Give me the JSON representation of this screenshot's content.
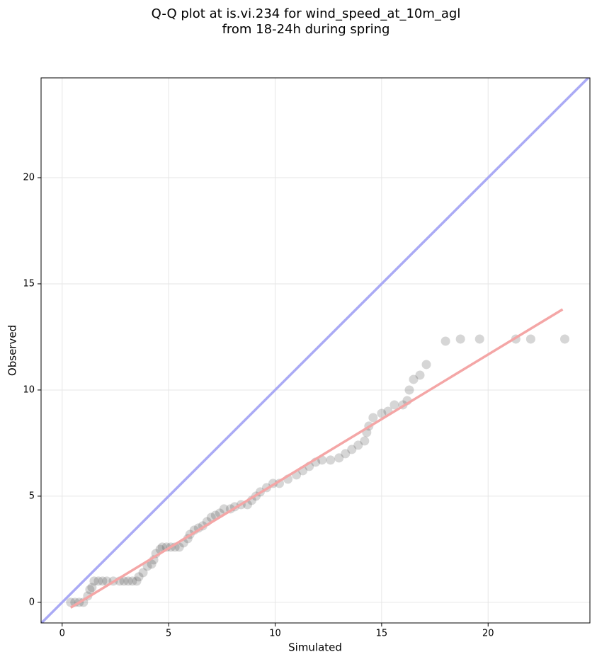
{
  "chart_data": {
    "type": "scatter",
    "title": "Q-Q plot at is.vi.234 for wind_speed_at_10m_agl",
    "subtitle": "from 18-24h during spring",
    "x_label": "Simulated",
    "y_label": "Observed",
    "xlim": [
      -0.99,
      24.78
    ],
    "ylim": [
      -0.97,
      24.7
    ],
    "xticks": [
      0,
      5,
      10,
      15,
      20
    ],
    "yticks": [
      0,
      5,
      10,
      15,
      20
    ],
    "grid": true,
    "series": [
      {
        "kind": "points",
        "color": "#333333",
        "x": [
          0.4,
          0.6,
          0.8,
          1.0,
          1.2,
          1.3,
          1.4,
          1.5,
          1.7,
          1.9,
          2.1,
          2.4,
          2.7,
          2.9,
          3.1,
          3.3,
          3.5,
          3.6,
          3.8,
          4.0,
          4.2,
          4.3,
          4.4,
          4.6,
          4.7,
          4.9,
          5.1,
          5.3,
          5.5,
          5.7,
          5.9,
          6.0,
          6.2,
          6.4,
          6.6,
          6.8,
          7.0,
          7.2,
          7.4,
          7.6,
          7.9,
          8.1,
          8.4,
          8.7,
          8.9,
          9.1,
          9.3,
          9.6,
          9.9,
          10.2,
          10.6,
          11.0,
          11.3,
          11.6,
          11.9,
          12.2,
          12.6,
          13.0,
          13.3,
          13.6,
          13.9,
          14.2,
          14.3,
          14.4,
          14.6,
          15.0,
          15.3,
          15.6,
          16.0,
          16.2,
          16.3,
          16.5,
          16.8,
          17.1,
          18.0,
          18.7,
          19.6,
          21.3,
          22.0,
          23.6
        ],
        "values": [
          0,
          0,
          0,
          0,
          0.3,
          0.6,
          0.7,
          1.0,
          1.0,
          1.0,
          1.0,
          1.0,
          1.0,
          1.0,
          1.0,
          1.0,
          1.0,
          1.2,
          1.4,
          1.7,
          1.8,
          2.0,
          2.3,
          2.5,
          2.6,
          2.6,
          2.6,
          2.6,
          2.6,
          2.8,
          3.0,
          3.2,
          3.4,
          3.5,
          3.6,
          3.8,
          4.0,
          4.1,
          4.2,
          4.4,
          4.4,
          4.5,
          4.6,
          4.6,
          4.8,
          5.0,
          5.2,
          5.4,
          5.6,
          5.6,
          5.8,
          6.0,
          6.2,
          6.4,
          6.6,
          6.7,
          6.7,
          6.8,
          7.0,
          7.2,
          7.4,
          7.6,
          8.0,
          8.3,
          8.7,
          8.9,
          9.0,
          9.3,
          9.3,
          9.5,
          10.0,
          10.5,
          10.7,
          11.2,
          12.3,
          12.4,
          12.4,
          12.4,
          12.4,
          12.4
        ]
      },
      {
        "kind": "line",
        "color": "#aaaaf5",
        "x": [
          -0.99,
          24.78
        ],
        "values": [
          -0.99,
          24.78
        ]
      },
      {
        "kind": "line",
        "color": "#f4a6a6",
        "x": [
          0.4,
          23.5
        ],
        "values": [
          -0.25,
          13.8
        ]
      }
    ]
  }
}
